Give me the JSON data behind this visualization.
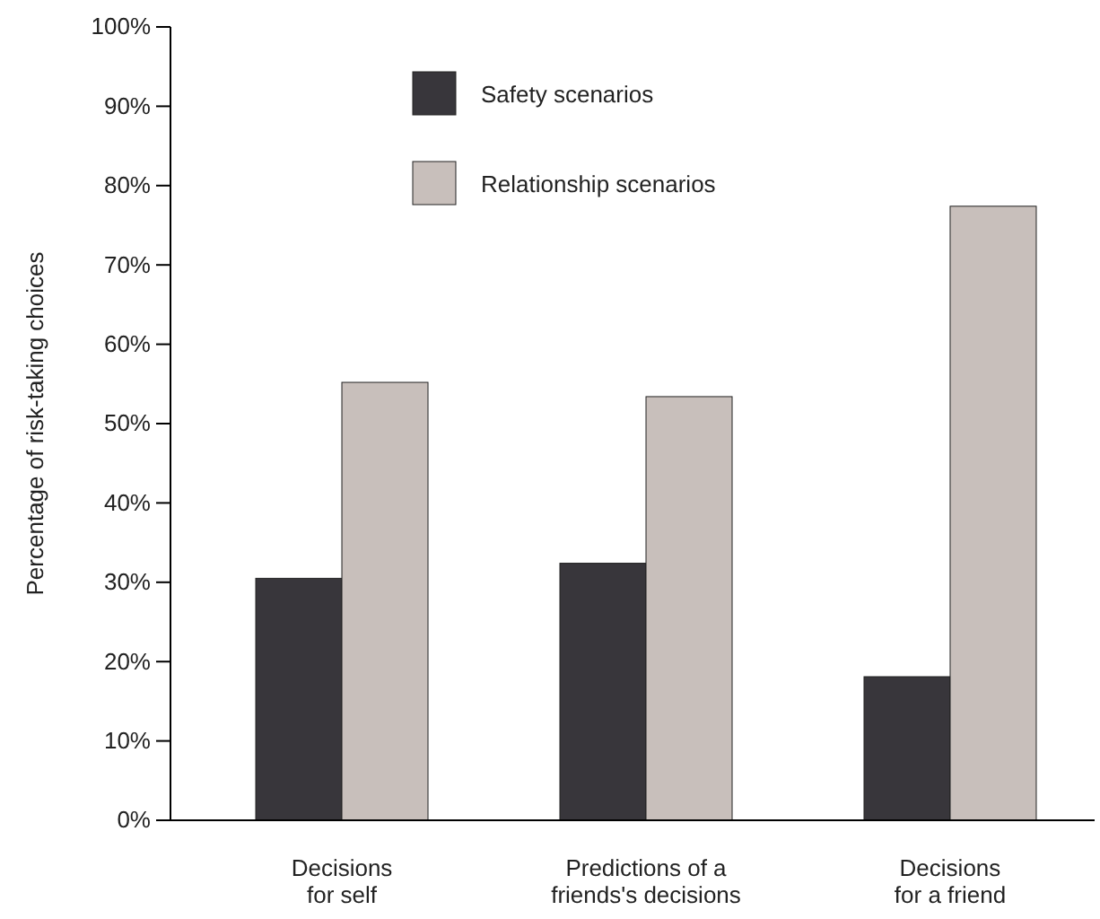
{
  "chart_data": {
    "type": "bar",
    "ylabel": "Percentage of risk-taking choices",
    "categories": [
      "Decisions\nfor self",
      "Predictions of a\nfriends's decisions",
      "Decisions\nfor a friend"
    ],
    "series": [
      {
        "name": "Safety scenarios",
        "color": "#38363b",
        "values": [
          30.5,
          32.4,
          18.1
        ]
      },
      {
        "name": "Relationship scenarios",
        "color": "#c8bfbb",
        "values": [
          55.2,
          53.4,
          77.4
        ]
      }
    ],
    "ylim": [
      0,
      100
    ],
    "yticks": [
      {
        "value": 0,
        "label": "0%"
      },
      {
        "value": 10,
        "label": "10%"
      },
      {
        "value": 20,
        "label": "20%"
      },
      {
        "value": 30,
        "label": "30%"
      },
      {
        "value": 40,
        "label": "40%"
      },
      {
        "value": 50,
        "label": "50%"
      },
      {
        "value": 60,
        "label": "60%"
      },
      {
        "value": 70,
        "label": "70%"
      },
      {
        "value": 80,
        "label": "80%"
      },
      {
        "value": 90,
        "label": "90%"
      },
      {
        "value": 100,
        "label": "100%"
      }
    ],
    "grid": false,
    "legend": "top"
  }
}
